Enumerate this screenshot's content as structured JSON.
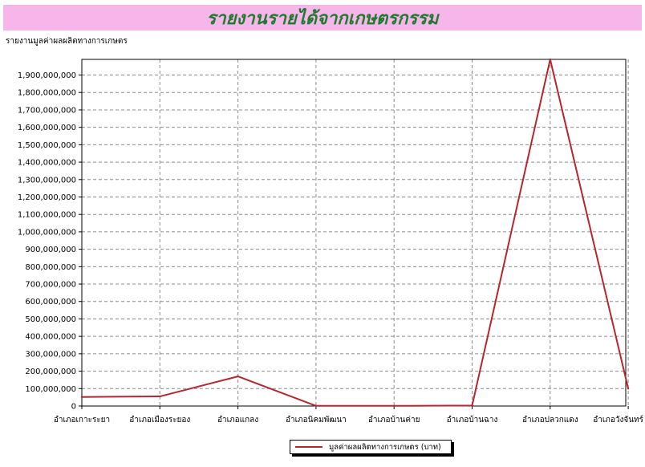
{
  "header": {
    "title": "รายงานรายได้จากเกษตรกรรม",
    "subtitle": "รายงานมูลค่าผลผลิตทางการเกษตร"
  },
  "colors": {
    "banner_bg": "#f7b6ea",
    "title_color": "#1f7a2e",
    "series_line": "#b5262f",
    "grid": "#8c8c8c"
  },
  "chart_data": {
    "type": "line",
    "title": "รายงานมูลค่าผลผลิตทางการเกษตร",
    "xlabel": "",
    "ylabel": "",
    "categories": [
      "อำเภอเกาะระยา",
      "อำเภอเมืองระยอง",
      "อำเภอแกลง",
      "อำเภอนิคมพัฒนา",
      "อำเภอบ้านค่าย",
      "อำเภอบ้านฉาง",
      "อำเภอปลวกแดง",
      "อำเภอวังจันทร์"
    ],
    "series": [
      {
        "name": "มูลค่าผลผลิตทางการเกษตร (บาท)",
        "values": [
          52000000,
          55000000,
          170000000,
          1000000,
          1000000,
          3000000,
          1990000000,
          100000000
        ]
      }
    ],
    "ylim": [
      0,
      1990000000
    ],
    "yticks": [
      0,
      100000000,
      200000000,
      300000000,
      400000000,
      500000000,
      600000000,
      700000000,
      800000000,
      900000000,
      1000000000,
      1100000000,
      1200000000,
      1300000000,
      1400000000,
      1500000000,
      1600000000,
      1700000000,
      1800000000,
      1900000000
    ],
    "grid": true,
    "legend_position": "bottom-center"
  }
}
